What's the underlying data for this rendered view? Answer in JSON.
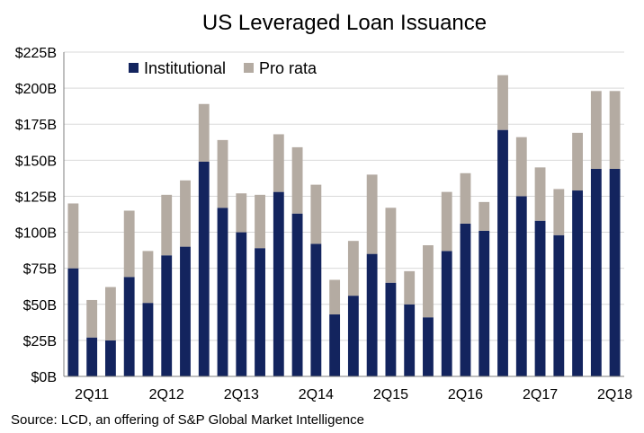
{
  "chart_data": {
    "type": "bar",
    "stacked": true,
    "title": "US Leveraged Loan Issuance",
    "source": "Source: LCD, an offering of S&P Global Market Intelligence",
    "xlabel": "",
    "ylabel": "",
    "ylim": [
      0,
      225
    ],
    "yticks": [
      0,
      25,
      50,
      75,
      100,
      125,
      150,
      175,
      200,
      225
    ],
    "ytick_labels": [
      "$0B",
      "$25B",
      "$50B",
      "$75B",
      "$100B",
      "$125B",
      "$150B",
      "$175B",
      "$200B",
      "$225B"
    ],
    "categories": [
      "1Q11",
      "2Q11",
      "3Q11",
      "4Q11",
      "1Q12",
      "2Q12",
      "3Q12",
      "4Q12",
      "1Q13",
      "2Q13",
      "3Q13",
      "4Q13",
      "1Q14",
      "2Q14",
      "3Q14",
      "4Q14",
      "1Q15",
      "2Q15",
      "3Q15",
      "4Q15",
      "1Q16",
      "2Q16",
      "3Q16",
      "4Q16",
      "1Q17",
      "2Q17",
      "3Q17",
      "4Q17",
      "1Q18",
      "2Q18"
    ],
    "xtick_labels": [
      {
        "index": 1,
        "label": "2Q11"
      },
      {
        "index": 5,
        "label": "2Q12"
      },
      {
        "index": 9,
        "label": "2Q13"
      },
      {
        "index": 13,
        "label": "2Q14"
      },
      {
        "index": 17,
        "label": "2Q15"
      },
      {
        "index": 21,
        "label": "2Q16"
      },
      {
        "index": 25,
        "label": "2Q17"
      },
      {
        "index": 29,
        "label": "2Q18"
      }
    ],
    "legend_position": "top-left",
    "grid": true,
    "series": [
      {
        "name": "Institutional",
        "color": "#13245e",
        "values": [
          75,
          27,
          25,
          69,
          51,
          84,
          90,
          149,
          117,
          100,
          89,
          128,
          113,
          92,
          43,
          56,
          85,
          65,
          50,
          41,
          87,
          106,
          101,
          171,
          125,
          108,
          98,
          129,
          144,
          144
        ]
      },
      {
        "name": "Pro rata",
        "color": "#b4aba2",
        "values": [
          45,
          26,
          37,
          46,
          36,
          42,
          46,
          40,
          47,
          27,
          37,
          40,
          46,
          41,
          24,
          38,
          55,
          52,
          23,
          50,
          41,
          35,
          20,
          38,
          41,
          37,
          32,
          40,
          54,
          54
        ]
      }
    ]
  }
}
